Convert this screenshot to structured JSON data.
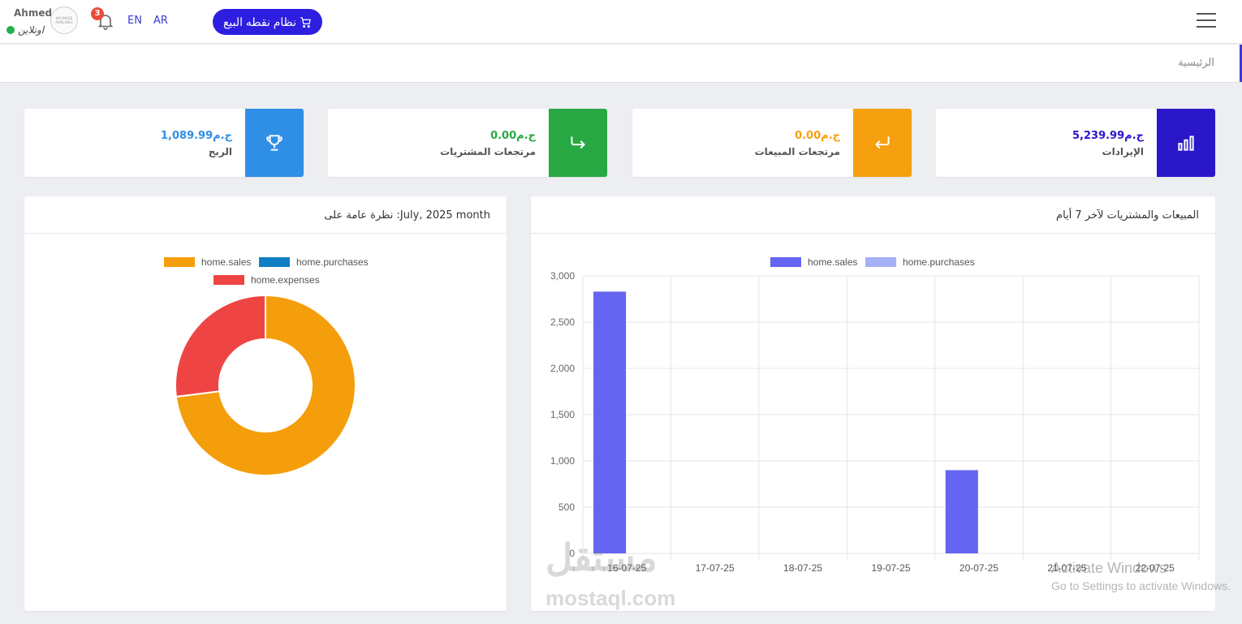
{
  "topbar": {
    "user_name": "Ahmed",
    "user_status": "اونلاين",
    "avatar_text": "NO IMAGE AVAILABLE",
    "notification_count": "3",
    "lang_en": "EN",
    "lang_ar": "AR",
    "pos_button_label": "نظام نقطه البيع",
    "colors": {
      "accent": "#2d1ee0",
      "online": "#22b14c",
      "badge": "#e84c3d"
    }
  },
  "breadcrumb": {
    "home": "الرئيسية"
  },
  "stats": [
    {
      "value": "5,239.99ج.م",
      "label": "الإيرادات",
      "icon": "bar-chart-icon",
      "color": "#2a17c9"
    },
    {
      "value": "0.00ج.م",
      "label": "مرتجعات المبيعات",
      "icon": "return-arrow-icon",
      "color": "#f5a00f"
    },
    {
      "value": "0.00ج.م",
      "label": "مرتجعات المشتريات",
      "icon": "forward-arrow-icon",
      "color": "#27a843"
    },
    {
      "value": "1,089.99ج.م",
      "label": "الربح",
      "icon": "trophy-icon",
      "color": "#2f8fe6"
    }
  ],
  "bar_panel": {
    "title": "المبيعات والمشتريات لآخر 7 أيام"
  },
  "donut_panel": {
    "title": "نظرة عامة على :July, 2025 month"
  },
  "chart_data": [
    {
      "type": "bar",
      "categories": [
        "16-07-25",
        "17-07-25",
        "18-07-25",
        "19-07-25",
        "20-07-25",
        "21-07-25",
        "22-07-25"
      ],
      "series": [
        {
          "name": "home.sales",
          "values": [
            2830,
            0,
            0,
            0,
            900,
            0,
            0
          ],
          "color": "#6466f1"
        },
        {
          "name": "home.purchases",
          "values": [
            0,
            0,
            0,
            0,
            0,
            0,
            0
          ],
          "color": "#a5b1f7"
        }
      ],
      "ylim": [
        0,
        3000
      ],
      "yticks": [
        "0",
        "500",
        "1,000",
        "1,500",
        "2,000",
        "2,500",
        "3,000"
      ],
      "grid": true,
      "legend": "top"
    },
    {
      "type": "pie",
      "donut": true,
      "labels": [
        "home.sales",
        "home.purchases",
        "home.expenses"
      ],
      "values": [
        73,
        0,
        27
      ],
      "colors": [
        "#f59e0b",
        "#0f7fc4",
        "#ef4444"
      ],
      "legend": "top"
    }
  ],
  "watermark": {
    "brand": "مستقل",
    "site": "mostaql.com",
    "activate_title": "Activate Windows",
    "activate_sub": "Go to Settings to activate Windows."
  }
}
